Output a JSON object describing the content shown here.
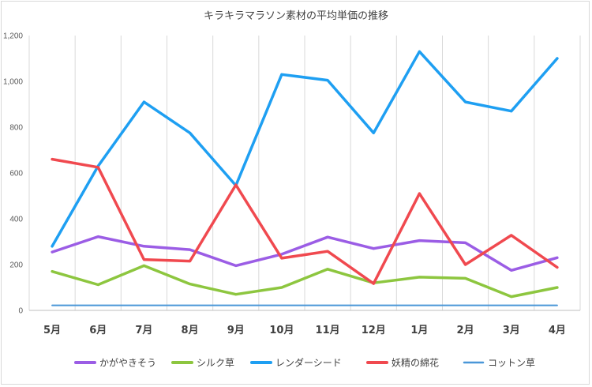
{
  "chart_data": {
    "type": "line",
    "title": "キラキラマラソン素材の平均単価の推移",
    "categories": [
      "5月",
      "6月",
      "7月",
      "8月",
      "9月",
      "10月",
      "11月",
      "12月",
      "1月",
      "2月",
      "3月",
      "4月"
    ],
    "ylim": [
      0,
      1200
    ],
    "yticks": [
      "0",
      "200",
      "400",
      "600",
      "800",
      "1,000",
      "1,200"
    ],
    "ytick_values": [
      0,
      200,
      400,
      600,
      800,
      1000,
      1200
    ],
    "grid": "vertical",
    "legend_position": "bottom",
    "series": [
      {
        "name": "かがやきそう",
        "color": "#9b5de5",
        "width": 3.5,
        "values": [
          255,
          322,
          280,
          265,
          195,
          245,
          320,
          270,
          305,
          295,
          175,
          230
        ]
      },
      {
        "name": "シルク草",
        "color": "#8dc63f",
        "width": 3.5,
        "values": [
          170,
          112,
          195,
          115,
          70,
          100,
          180,
          120,
          145,
          140,
          60,
          100
        ]
      },
      {
        "name": "レンダーシード",
        "color": "#1e9ff2",
        "width": 3.5,
        "values": [
          280,
          630,
          910,
          775,
          545,
          1030,
          1005,
          775,
          1130,
          910,
          870,
          1100
        ]
      },
      {
        "name": "妖精の綿花",
        "color": "#f0494f",
        "width": 3.5,
        "values": [
          660,
          625,
          222,
          215,
          548,
          228,
          258,
          117,
          510,
          200,
          328,
          188
        ]
      },
      {
        "name": "コットン草",
        "color": "#4a97d8",
        "width": 2,
        "values": [
          22,
          22,
          22,
          22,
          22,
          22,
          22,
          22,
          22,
          22,
          22,
          22
        ]
      }
    ]
  }
}
